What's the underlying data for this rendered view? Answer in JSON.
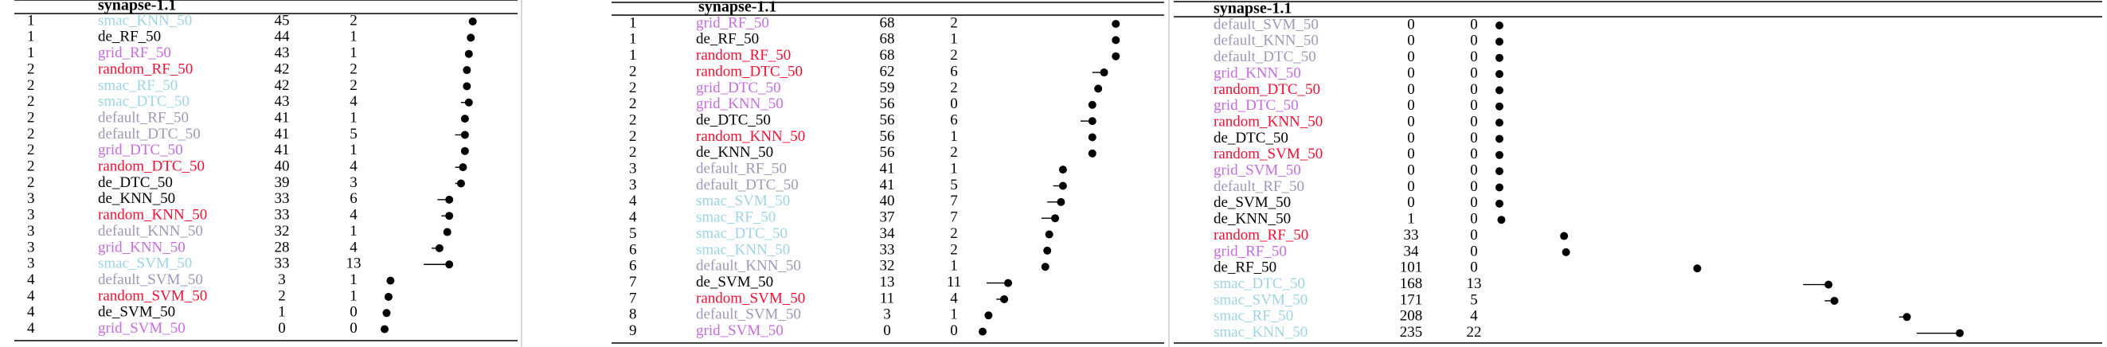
{
  "panels": [
    {
      "title": "synapse-1.1",
      "rows": [
        {
          "rank": 1,
          "name": "smac_KNN_50",
          "median": 45,
          "iqr": 2,
          "color": "#9fd4e3"
        },
        {
          "rank": 1,
          "name": "de_RF_50",
          "median": 44,
          "iqr": 1,
          "color": "#000000"
        },
        {
          "rank": 1,
          "name": "grid_RF_50",
          "median": 43,
          "iqr": 1,
          "color": "#c46de0"
        },
        {
          "rank": 2,
          "name": "random_RF_50",
          "median": 42,
          "iqr": 2,
          "color": "#ee1133"
        },
        {
          "rank": 2,
          "name": "smac_RF_50",
          "median": 42,
          "iqr": 2,
          "color": "#9fd4e3"
        },
        {
          "rank": 2,
          "name": "smac_DTC_50",
          "median": 43,
          "iqr": 4,
          "color": "#9fd4e3"
        },
        {
          "rank": 2,
          "name": "default_RF_50",
          "median": 41,
          "iqr": 1,
          "color": "#9a9ab8"
        },
        {
          "rank": 2,
          "name": "default_DTC_50",
          "median": 41,
          "iqr": 5,
          "color": "#9a9ab8"
        },
        {
          "rank": 2,
          "name": "grid_DTC_50",
          "median": 41,
          "iqr": 1,
          "color": "#c46de0"
        },
        {
          "rank": 2,
          "name": "random_DTC_50",
          "median": 40,
          "iqr": 4,
          "color": "#ee1133"
        },
        {
          "rank": 2,
          "name": "de_DTC_50",
          "median": 39,
          "iqr": 3,
          "color": "#000000"
        },
        {
          "rank": 3,
          "name": "de_KNN_50",
          "median": 33,
          "iqr": 6,
          "color": "#000000"
        },
        {
          "rank": 3,
          "name": "random_KNN_50",
          "median": 33,
          "iqr": 4,
          "color": "#ee1133"
        },
        {
          "rank": 3,
          "name": "default_KNN_50",
          "median": 32,
          "iqr": 1,
          "color": "#9a9ab8"
        },
        {
          "rank": 3,
          "name": "grid_KNN_50",
          "median": 28,
          "iqr": 4,
          "color": "#c46de0"
        },
        {
          "rank": 3,
          "name": "smac_SVM_50",
          "median": 33,
          "iqr": 13,
          "color": "#9fd4e3"
        },
        {
          "rank": 4,
          "name": "default_SVM_50",
          "median": 3,
          "iqr": 1,
          "color": "#9a9ab8"
        },
        {
          "rank": 4,
          "name": "random_SVM_50",
          "median": 2,
          "iqr": 1,
          "color": "#ee1133"
        },
        {
          "rank": 4,
          "name": "de_SVM_50",
          "median": 1,
          "iqr": 0,
          "color": "#000000"
        },
        {
          "rank": 4,
          "name": "grid_SVM_50",
          "median": 0,
          "iqr": 0,
          "color": "#c46de0"
        }
      ]
    },
    {
      "title": "synapse-1.1",
      "rows": [
        {
          "rank": 1,
          "name": "grid_RF_50",
          "median": 68,
          "iqr": 2,
          "color": "#c46de0"
        },
        {
          "rank": 1,
          "name": "de_RF_50",
          "median": 68,
          "iqr": 1,
          "color": "#000000"
        },
        {
          "rank": 1,
          "name": "random_RF_50",
          "median": 68,
          "iqr": 2,
          "color": "#ee1133"
        },
        {
          "rank": 2,
          "name": "random_DTC_50",
          "median": 62,
          "iqr": 6,
          "color": "#ee1133"
        },
        {
          "rank": 2,
          "name": "grid_DTC_50",
          "median": 59,
          "iqr": 2,
          "color": "#c46de0"
        },
        {
          "rank": 2,
          "name": "grid_KNN_50",
          "median": 56,
          "iqr": 0,
          "color": "#c46de0"
        },
        {
          "rank": 2,
          "name": "de_DTC_50",
          "median": 56,
          "iqr": 6,
          "color": "#000000"
        },
        {
          "rank": 2,
          "name": "random_KNN_50",
          "median": 56,
          "iqr": 1,
          "color": "#ee1133"
        },
        {
          "rank": 2,
          "name": "de_KNN_50",
          "median": 56,
          "iqr": 2,
          "color": "#000000"
        },
        {
          "rank": 3,
          "name": "default_RF_50",
          "median": 41,
          "iqr": 1,
          "color": "#9a9ab8"
        },
        {
          "rank": 3,
          "name": "default_DTC_50",
          "median": 41,
          "iqr": 5,
          "color": "#9a9ab8"
        },
        {
          "rank": 4,
          "name": "smac_SVM_50",
          "median": 40,
          "iqr": 7,
          "color": "#9fd4e3"
        },
        {
          "rank": 4,
          "name": "smac_RF_50",
          "median": 37,
          "iqr": 7,
          "color": "#9fd4e3"
        },
        {
          "rank": 5,
          "name": "smac_DTC_50",
          "median": 34,
          "iqr": 2,
          "color": "#9fd4e3"
        },
        {
          "rank": 6,
          "name": "smac_KNN_50",
          "median": 33,
          "iqr": 2,
          "color": "#9fd4e3"
        },
        {
          "rank": 6,
          "name": "default_KNN_50",
          "median": 32,
          "iqr": 1,
          "color": "#9a9ab8"
        },
        {
          "rank": 7,
          "name": "de_SVM_50",
          "median": 13,
          "iqr": 11,
          "color": "#000000"
        },
        {
          "rank": 7,
          "name": "random_SVM_50",
          "median": 11,
          "iqr": 4,
          "color": "#ee1133"
        },
        {
          "rank": 8,
          "name": "default_SVM_50",
          "median": 3,
          "iqr": 1,
          "color": "#9a9ab8"
        },
        {
          "rank": 9,
          "name": "grid_SVM_50",
          "median": 0,
          "iqr": 0,
          "color": "#c46de0"
        }
      ]
    },
    {
      "title": "synapse-1.1",
      "rows": [
        {
          "name": "default_SVM_50",
          "median": 0,
          "iqr": 0,
          "color": "#9a9ab8"
        },
        {
          "name": "default_KNN_50",
          "median": 0,
          "iqr": 0,
          "color": "#9a9ab8"
        },
        {
          "name": "default_DTC_50",
          "median": 0,
          "iqr": 0,
          "color": "#9a9ab8"
        },
        {
          "name": "grid_KNN_50",
          "median": 0,
          "iqr": 0,
          "color": "#c46de0"
        },
        {
          "name": "random_DTC_50",
          "median": 0,
          "iqr": 0,
          "color": "#ee1133"
        },
        {
          "name": "grid_DTC_50",
          "median": 0,
          "iqr": 0,
          "color": "#c46de0"
        },
        {
          "name": "random_KNN_50",
          "median": 0,
          "iqr": 0,
          "color": "#ee1133"
        },
        {
          "name": "de_DTC_50",
          "median": 0,
          "iqr": 0,
          "color": "#000000"
        },
        {
          "name": "random_SVM_50",
          "median": 0,
          "iqr": 0,
          "color": "#ee1133"
        },
        {
          "name": "grid_SVM_50",
          "median": 0,
          "iqr": 0,
          "color": "#c46de0"
        },
        {
          "name": "default_RF_50",
          "median": 0,
          "iqr": 0,
          "color": "#9a9ab8"
        },
        {
          "name": "de_SVM_50",
          "median": 0,
          "iqr": 0,
          "color": "#000000"
        },
        {
          "name": "de_KNN_50",
          "median": 1,
          "iqr": 0,
          "color": "#000000"
        },
        {
          "name": "random_RF_50",
          "median": 33,
          "iqr": 0,
          "color": "#ee1133"
        },
        {
          "name": "grid_RF_50",
          "median": 34,
          "iqr": 0,
          "color": "#c46de0"
        },
        {
          "name": "de_RF_50",
          "median": 101,
          "iqr": 0,
          "color": "#000000"
        },
        {
          "name": "smac_DTC_50",
          "median": 168,
          "iqr": 13,
          "color": "#9fd4e3"
        },
        {
          "name": "smac_SVM_50",
          "median": 171,
          "iqr": 5,
          "color": "#9fd4e3"
        },
        {
          "name": "smac_RF_50",
          "median": 208,
          "iqr": 4,
          "color": "#9fd4e3"
        },
        {
          "name": "smac_KNN_50",
          "median": 235,
          "iqr": 22,
          "color": "#9fd4e3"
        }
      ]
    }
  ]
}
